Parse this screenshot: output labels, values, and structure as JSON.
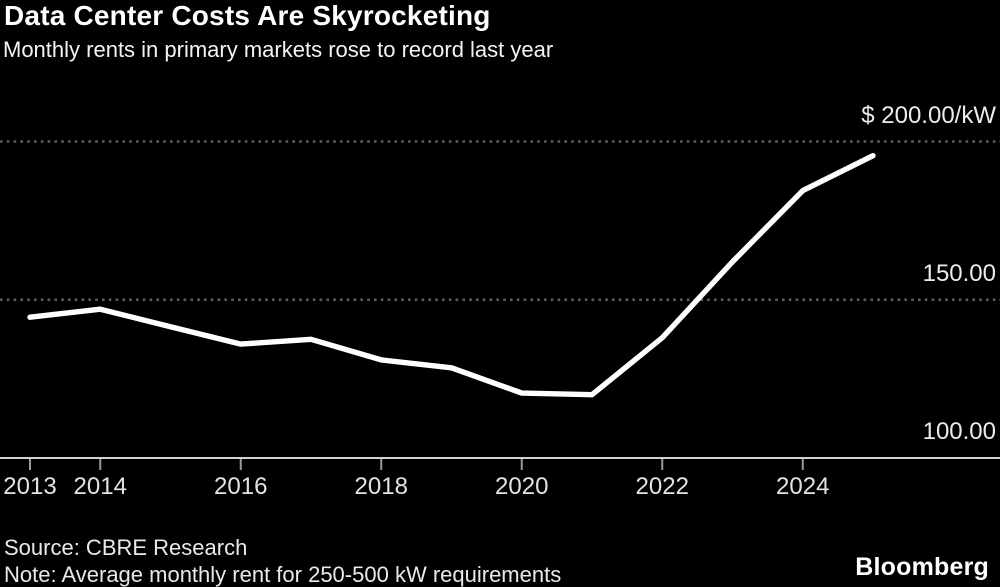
{
  "chart_data": {
    "type": "line",
    "title": "Data Center Costs Are Skyrocketing",
    "subtitle": "Monthly rents in primary markets rose to record last year",
    "x": [
      2013,
      2014,
      2015,
      2016,
      2017,
      2018,
      2019,
      2020,
      2021,
      2022,
      2023,
      2024,
      2025
    ],
    "series": [
      {
        "name": "Average monthly rent ($/kW)",
        "values": [
          144.5,
          147,
          141.5,
          136,
          137.5,
          131,
          128.5,
          120.5,
          120,
          138,
          162,
          184.5,
          195.5
        ]
      }
    ],
    "ylim": [
      100,
      205
    ],
    "xlim": [
      2012.6,
      2026.8
    ],
    "yticks": [
      {
        "value": 200,
        "label": "$ 200.00/kW",
        "grid": "dotted"
      },
      {
        "value": 150,
        "label": "150.00",
        "grid": "dotted"
      },
      {
        "value": 100,
        "label": "100.00",
        "grid": "solid"
      }
    ],
    "xticks": [
      2013,
      2014,
      2016,
      2018,
      2020,
      2022,
      2024
    ],
    "grid": "horizontal",
    "legend": "none",
    "line_color": "#ffffff",
    "grid_dot_color": "#5f5f5f",
    "baseline_color": "#d2d2d2",
    "tick_color": "#9a9a9a",
    "background": "#000000"
  },
  "footer": {
    "source": "Source: CBRE Research",
    "note": "Note: Average monthly rent for 250-500 kW requirements",
    "brand": "Bloomberg"
  }
}
